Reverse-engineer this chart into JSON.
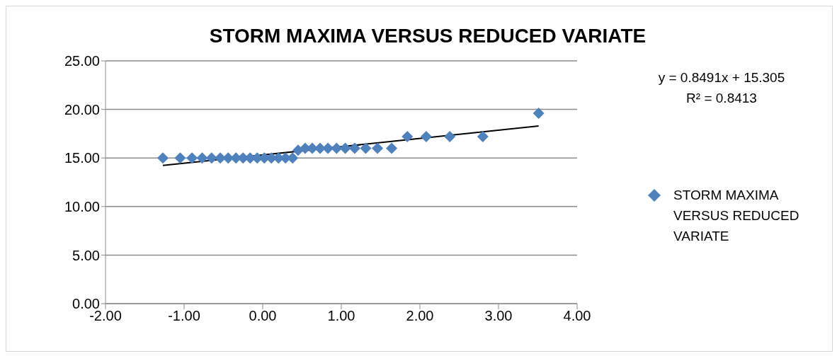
{
  "chart_data": {
    "type": "scatter",
    "title": "STORM MAXIMA VERSUS REDUCED VARIATE",
    "series": [
      {
        "name": "STORM MAXIMA VERSUS REDUCED VARIATE",
        "color": "#4f81bd",
        "marker": "diamond",
        "x": [
          -1.27,
          -1.05,
          -0.9,
          -0.77,
          -0.65,
          -0.54,
          -0.44,
          -0.34,
          -0.25,
          -0.16,
          -0.07,
          0.02,
          0.11,
          0.2,
          0.29,
          0.38,
          0.45,
          0.54,
          0.63,
          0.73,
          0.83,
          0.94,
          1.05,
          1.17,
          1.31,
          1.46,
          1.64,
          1.84,
          2.08,
          2.38,
          2.8,
          3.51
        ],
        "values": [
          15,
          15,
          15,
          15,
          15,
          15,
          15,
          15,
          15,
          15,
          15,
          15,
          15,
          15,
          15,
          15,
          15.8,
          16,
          16,
          16,
          16,
          16,
          16,
          16,
          16,
          16,
          16,
          17.2,
          17.2,
          17.2,
          17.2,
          19.6
        ]
      },
      {
        "color": "#000000",
        "type": "line",
        "marker": "none",
        "x": [
          -1.27,
          3.51
        ],
        "values": [
          14.23,
          18.29
        ]
      }
    ],
    "xlim": [
      -2,
      4
    ],
    "xticks": [
      {
        "value": -2,
        "label": "-2.00"
      },
      {
        "value": -1,
        "label": "-1.00"
      },
      {
        "value": 0,
        "label": "0.00"
      },
      {
        "value": 1,
        "label": "1.00"
      },
      {
        "value": 2,
        "label": "2.00"
      },
      {
        "value": 3,
        "label": "3.00"
      },
      {
        "value": 4,
        "label": "4.00"
      }
    ],
    "ylim": [
      0,
      25
    ],
    "yticks": [
      {
        "value": 0,
        "label": "0.00"
      },
      {
        "value": 5,
        "label": "5.00"
      },
      {
        "value": 10,
        "label": "10.00"
      },
      {
        "value": 15,
        "label": "15.00"
      },
      {
        "value": 20,
        "label": "20.00"
      },
      {
        "value": 25,
        "label": "25.00"
      }
    ],
    "grid": "y",
    "legend": "right",
    "annotations": [
      "y = 0.8491x + 15.305",
      "R² = 0.8413"
    ]
  }
}
